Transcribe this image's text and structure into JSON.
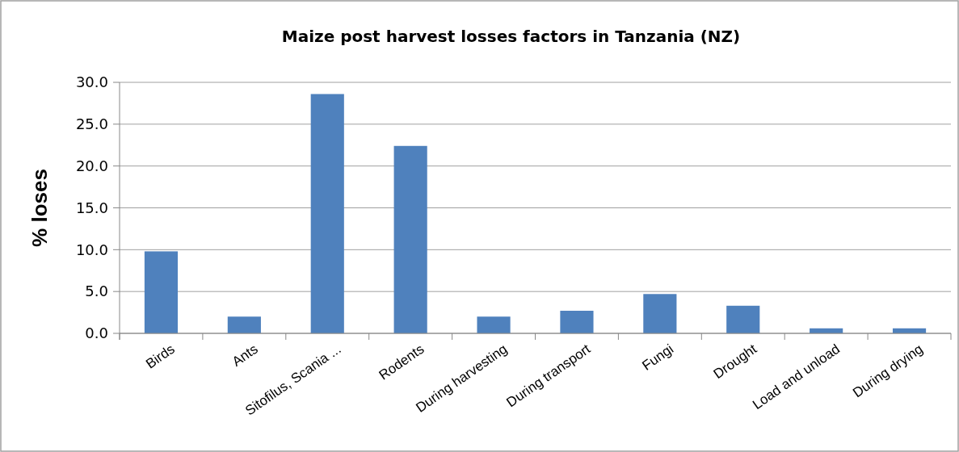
{
  "chart_data": {
    "type": "bar",
    "title": "Maize post harvest losses factors  in Tanzania (NZ)",
    "ylabel": "% loses",
    "categories": [
      "Birds",
      "Ants",
      "Sitofilus, Scania ...",
      "Rodents",
      "During harvesting",
      "During transport",
      "Fungi",
      "Drought",
      "Load and unload",
      "During drying"
    ],
    "values": [
      9.8,
      2.0,
      28.6,
      22.4,
      2.0,
      2.7,
      4.7,
      3.3,
      0.6,
      0.6
    ],
    "color": "#4f81bd",
    "ylim": [
      0,
      30
    ],
    "yticks": [
      {
        "value": 0,
        "label": "0.0"
      },
      {
        "value": 5,
        "label": "5.0"
      },
      {
        "value": 10,
        "label": "10.0"
      },
      {
        "value": 15,
        "label": "15.0"
      },
      {
        "value": 20,
        "label": "20.0"
      },
      {
        "value": 25,
        "label": "25.0"
      },
      {
        "value": 30,
        "label": "30.0"
      }
    ],
    "grid": "y"
  }
}
